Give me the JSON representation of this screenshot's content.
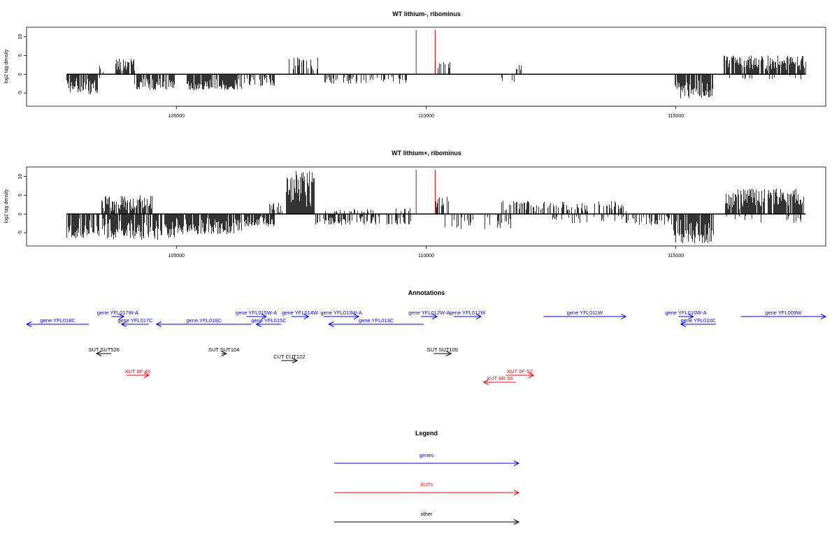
{
  "chart_data": [
    {
      "type": "bar",
      "title": "WT lithium-, ribominus",
      "ylabel": "log2 tag density",
      "xlim": [
        102000,
        118000
      ],
      "ylim": [
        -8.5,
        12.5
      ],
      "xticks": [
        105000,
        110000,
        115000
      ],
      "yticks": [
        -5,
        0,
        5,
        10
      ],
      "baseline": [
        102800,
        117600
      ],
      "markers": [
        109800,
        110180
      ],
      "marker_color": "#d00000",
      "segments": [
        {
          "x0": 102800,
          "x1": 103450,
          "amp": -5.5,
          "gap": 1
        },
        {
          "x0": 103450,
          "x1": 103620,
          "amp": 2.3,
          "gap": 5
        },
        {
          "x0": 103620,
          "x1": 103800,
          "amp": -1.2,
          "gap": 9
        },
        {
          "x0": 103780,
          "x1": 104150,
          "amp": 4.2,
          "gap": 1
        },
        {
          "x0": 104150,
          "x1": 104950,
          "amp": -4.2,
          "gap": 1
        },
        {
          "x0": 105200,
          "x1": 106300,
          "amp": -4.2,
          "gap": 1
        },
        {
          "x0": 106350,
          "x1": 106950,
          "amp": -3.2,
          "gap": 2
        },
        {
          "x0": 107250,
          "x1": 107850,
          "amp": 4.5,
          "gap": 2
        },
        {
          "x0": 107900,
          "x1": 109700,
          "amp": -2.6,
          "gap": 3
        },
        {
          "x0": 110150,
          "x1": 110500,
          "amp": 3.5,
          "gap": 2
        },
        {
          "x0": 111500,
          "x1": 111750,
          "amp": -2.0,
          "gap": 3
        },
        {
          "x0": 111800,
          "x1": 111900,
          "amp": 2.5,
          "gap": 2
        },
        {
          "x0": 114950,
          "x1": 115750,
          "amp": -6.5,
          "gap": 1
        },
        {
          "x0": 115950,
          "x1": 117600,
          "amp": 5.0,
          "gap": 1
        },
        {
          "x0": 116000,
          "x1": 117500,
          "amp": -1.4,
          "gap": 8
        }
      ]
    },
    {
      "type": "bar",
      "title": "WT lithium+, ribominus",
      "ylabel": "log2 tag density",
      "xlim": [
        102000,
        118000
      ],
      "ylim": [
        -8.5,
        12.5
      ],
      "xticks": [
        105000,
        110000,
        115000
      ],
      "yticks": [
        -5,
        0,
        5,
        10
      ],
      "baseline": [
        102800,
        117600
      ],
      "markers": [
        109800,
        110180
      ],
      "marker_color": "#d00000",
      "segments": [
        {
          "x0": 102800,
          "x1": 103450,
          "amp": -6.5,
          "gap": 1
        },
        {
          "x0": 103500,
          "x1": 104500,
          "amp": 5.0,
          "gap": 1
        },
        {
          "x0": 103500,
          "x1": 104950,
          "amp": -7.0,
          "gap": 1
        },
        {
          "x0": 104950,
          "x1": 106300,
          "amp": -5.5,
          "gap": 1
        },
        {
          "x0": 106350,
          "x1": 106950,
          "amp": -3.5,
          "gap": 1
        },
        {
          "x0": 106800,
          "x1": 107150,
          "amp": 3.0,
          "gap": 3
        },
        {
          "x0": 107200,
          "x1": 107750,
          "amp": 12.0,
          "gap": 0
        },
        {
          "x0": 107750,
          "x1": 109700,
          "amp": -3.0,
          "gap": 2
        },
        {
          "x0": 107900,
          "x1": 109700,
          "amp": 1.5,
          "gap": 5
        },
        {
          "x0": 110150,
          "x1": 110450,
          "amp": 5.0,
          "gap": 2
        },
        {
          "x0": 110200,
          "x1": 111700,
          "amp": -4.0,
          "gap": 3
        },
        {
          "x0": 111500,
          "x1": 114000,
          "amp": 3.5,
          "gap": 2
        },
        {
          "x0": 112500,
          "x1": 114000,
          "amp": -2.5,
          "gap": 4
        },
        {
          "x0": 114000,
          "x1": 114950,
          "amp": -3.0,
          "gap": 2
        },
        {
          "x0": 114950,
          "x1": 115750,
          "amp": -8.0,
          "gap": 1
        },
        {
          "x0": 115950,
          "x1": 117600,
          "amp": 7.0,
          "gap": 1
        },
        {
          "x0": 116000,
          "x1": 117500,
          "amp": -2.5,
          "gap": 4
        }
      ]
    }
  ],
  "annotations": {
    "title": "Annotations",
    "xlim": [
      102000,
      118000
    ],
    "colors": {
      "gene": "#0000ff",
      "xut": "#ff0000",
      "other": "#000000"
    },
    "features": [
      {
        "label": "gene YFL018C",
        "kind": "gene",
        "start": 102000,
        "end": 103250,
        "strand": "-",
        "row": 1
      },
      {
        "label": "gene YFL017W-A",
        "kind": "gene",
        "start": 103700,
        "end": 103950,
        "strand": "+",
        "row": 0
      },
      {
        "label": "gene YFL017C",
        "kind": "gene",
        "start": 103900,
        "end": 104450,
        "strand": "-",
        "row": 1
      },
      {
        "label": "gene YFL016C",
        "kind": "gene",
        "start": 104600,
        "end": 106500,
        "strand": "-",
        "row": 1
      },
      {
        "label": "gene YFL015W-A",
        "kind": "gene",
        "start": 106400,
        "end": 106800,
        "strand": "+",
        "row": 0
      },
      {
        "label": "gene YFL015C",
        "kind": "gene",
        "start": 106600,
        "end": 107100,
        "strand": "-",
        "row": 1
      },
      {
        "label": "gene YFL014W",
        "kind": "gene",
        "start": 107300,
        "end": 107650,
        "strand": "+",
        "row": 0
      },
      {
        "label": "gene YFL013W-A",
        "kind": "gene",
        "start": 107950,
        "end": 108650,
        "strand": "+",
        "row": 0
      },
      {
        "label": "gene YFL013C",
        "kind": "gene",
        "start": 108050,
        "end": 109950,
        "strand": "-",
        "row": 1
      },
      {
        "label": "gene YFL012W-A",
        "kind": "gene",
        "start": 109900,
        "end": 110220,
        "strand": "+",
        "row": 0
      },
      {
        "label": "gene YFL012W",
        "kind": "gene",
        "start": 110550,
        "end": 111100,
        "strand": "+",
        "row": 0
      },
      {
        "label": "gene YFL011W",
        "kind": "gene",
        "start": 112350,
        "end": 114000,
        "strand": "+",
        "row": 0
      },
      {
        "label": "gene YFL010W-A",
        "kind": "gene",
        "start": 115050,
        "end": 115350,
        "strand": "+",
        "row": 0
      },
      {
        "label": "gene YFL010C",
        "kind": "gene",
        "start": 115100,
        "end": 115800,
        "strand": "-",
        "row": 1
      },
      {
        "label": "gene YFL009W",
        "kind": "gene",
        "start": 116300,
        "end": 118000,
        "strand": "+",
        "row": 0
      },
      {
        "label": "SUT SUT526",
        "kind": "other",
        "start": 103400,
        "end": 103700,
        "strand": "-",
        "row": 2
      },
      {
        "label": "SUT SUT104",
        "kind": "other",
        "start": 105900,
        "end": 106000,
        "strand": "+",
        "row": 2
      },
      {
        "label": "CUT CUT122",
        "kind": "other",
        "start": 107100,
        "end": 107420,
        "strand": "+",
        "row": 3
      },
      {
        "label": "SUT SUT105",
        "kind": "other",
        "start": 110150,
        "end": 110500,
        "strand": "+",
        "row": 2
      },
      {
        "label": "XUT 6F-46",
        "kind": "xut",
        "start": 104000,
        "end": 104450,
        "strand": "+",
        "row": 4
      },
      {
        "label": "XUT 6F-52",
        "kind": "xut",
        "start": 111600,
        "end": 112150,
        "strand": "+",
        "row": 4
      },
      {
        "label": "XUT 6R-50",
        "kind": "xut",
        "start": 111150,
        "end": 111800,
        "strand": "-",
        "row": 5
      }
    ]
  },
  "legend": {
    "title": "Legend",
    "items": [
      {
        "label": "genes",
        "color": "#0000ff"
      },
      {
        "label": "XUTs",
        "color": "#ff0000"
      },
      {
        "label": "other",
        "color": "#000000"
      }
    ]
  }
}
